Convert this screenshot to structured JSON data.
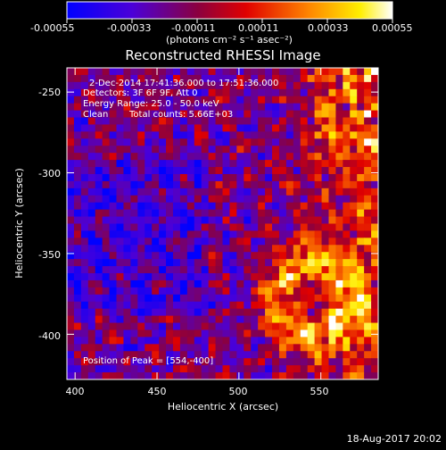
{
  "colorbar": {
    "ticks": [
      "-0.00055",
      "-0.00033",
      "-0.00011",
      "0.00011",
      "0.00033",
      "0.00055"
    ],
    "unit": "(photons cm⁻² s⁻¹ asec⁻²)",
    "colors": [
      "#0000ff",
      "#ff0000",
      "#ffff00",
      "#ffffff"
    ]
  },
  "chart_data": {
    "type": "heatmap",
    "title": "Reconstructed RHESSI Image",
    "xlabel": "Heliocentric X (arcsec)",
    "ylabel": "Heliocentric Y (arcsec)",
    "xlim": [
      395,
      585
    ],
    "ylim": [
      -428,
      -235
    ],
    "x_ticks": [
      400,
      450,
      500,
      550
    ],
    "y_ticks": [
      -250,
      -300,
      -350,
      -400
    ],
    "x_tick_labels": [
      "400",
      "450",
      "500",
      "550"
    ],
    "y_tick_labels": [
      "-250",
      "-300",
      "-350",
      "-400"
    ],
    "value_range": [
      -0.00055,
      0.00055
    ],
    "annotations": [
      "2-Dec-2014 17:41:36.000 to 17:51:36.000",
      "Detectors: 3F 6F 9F, Att 0",
      "Energy Range: 25.0 - 50.0 keV",
      "Clean",
      "Total counts: 5.66E+03",
      "Position of Peak = [554,-400]"
    ],
    "peak": [
      554,
      -400
    ]
  },
  "footer": {
    "date": "18-Aug-2017 20:02"
  }
}
